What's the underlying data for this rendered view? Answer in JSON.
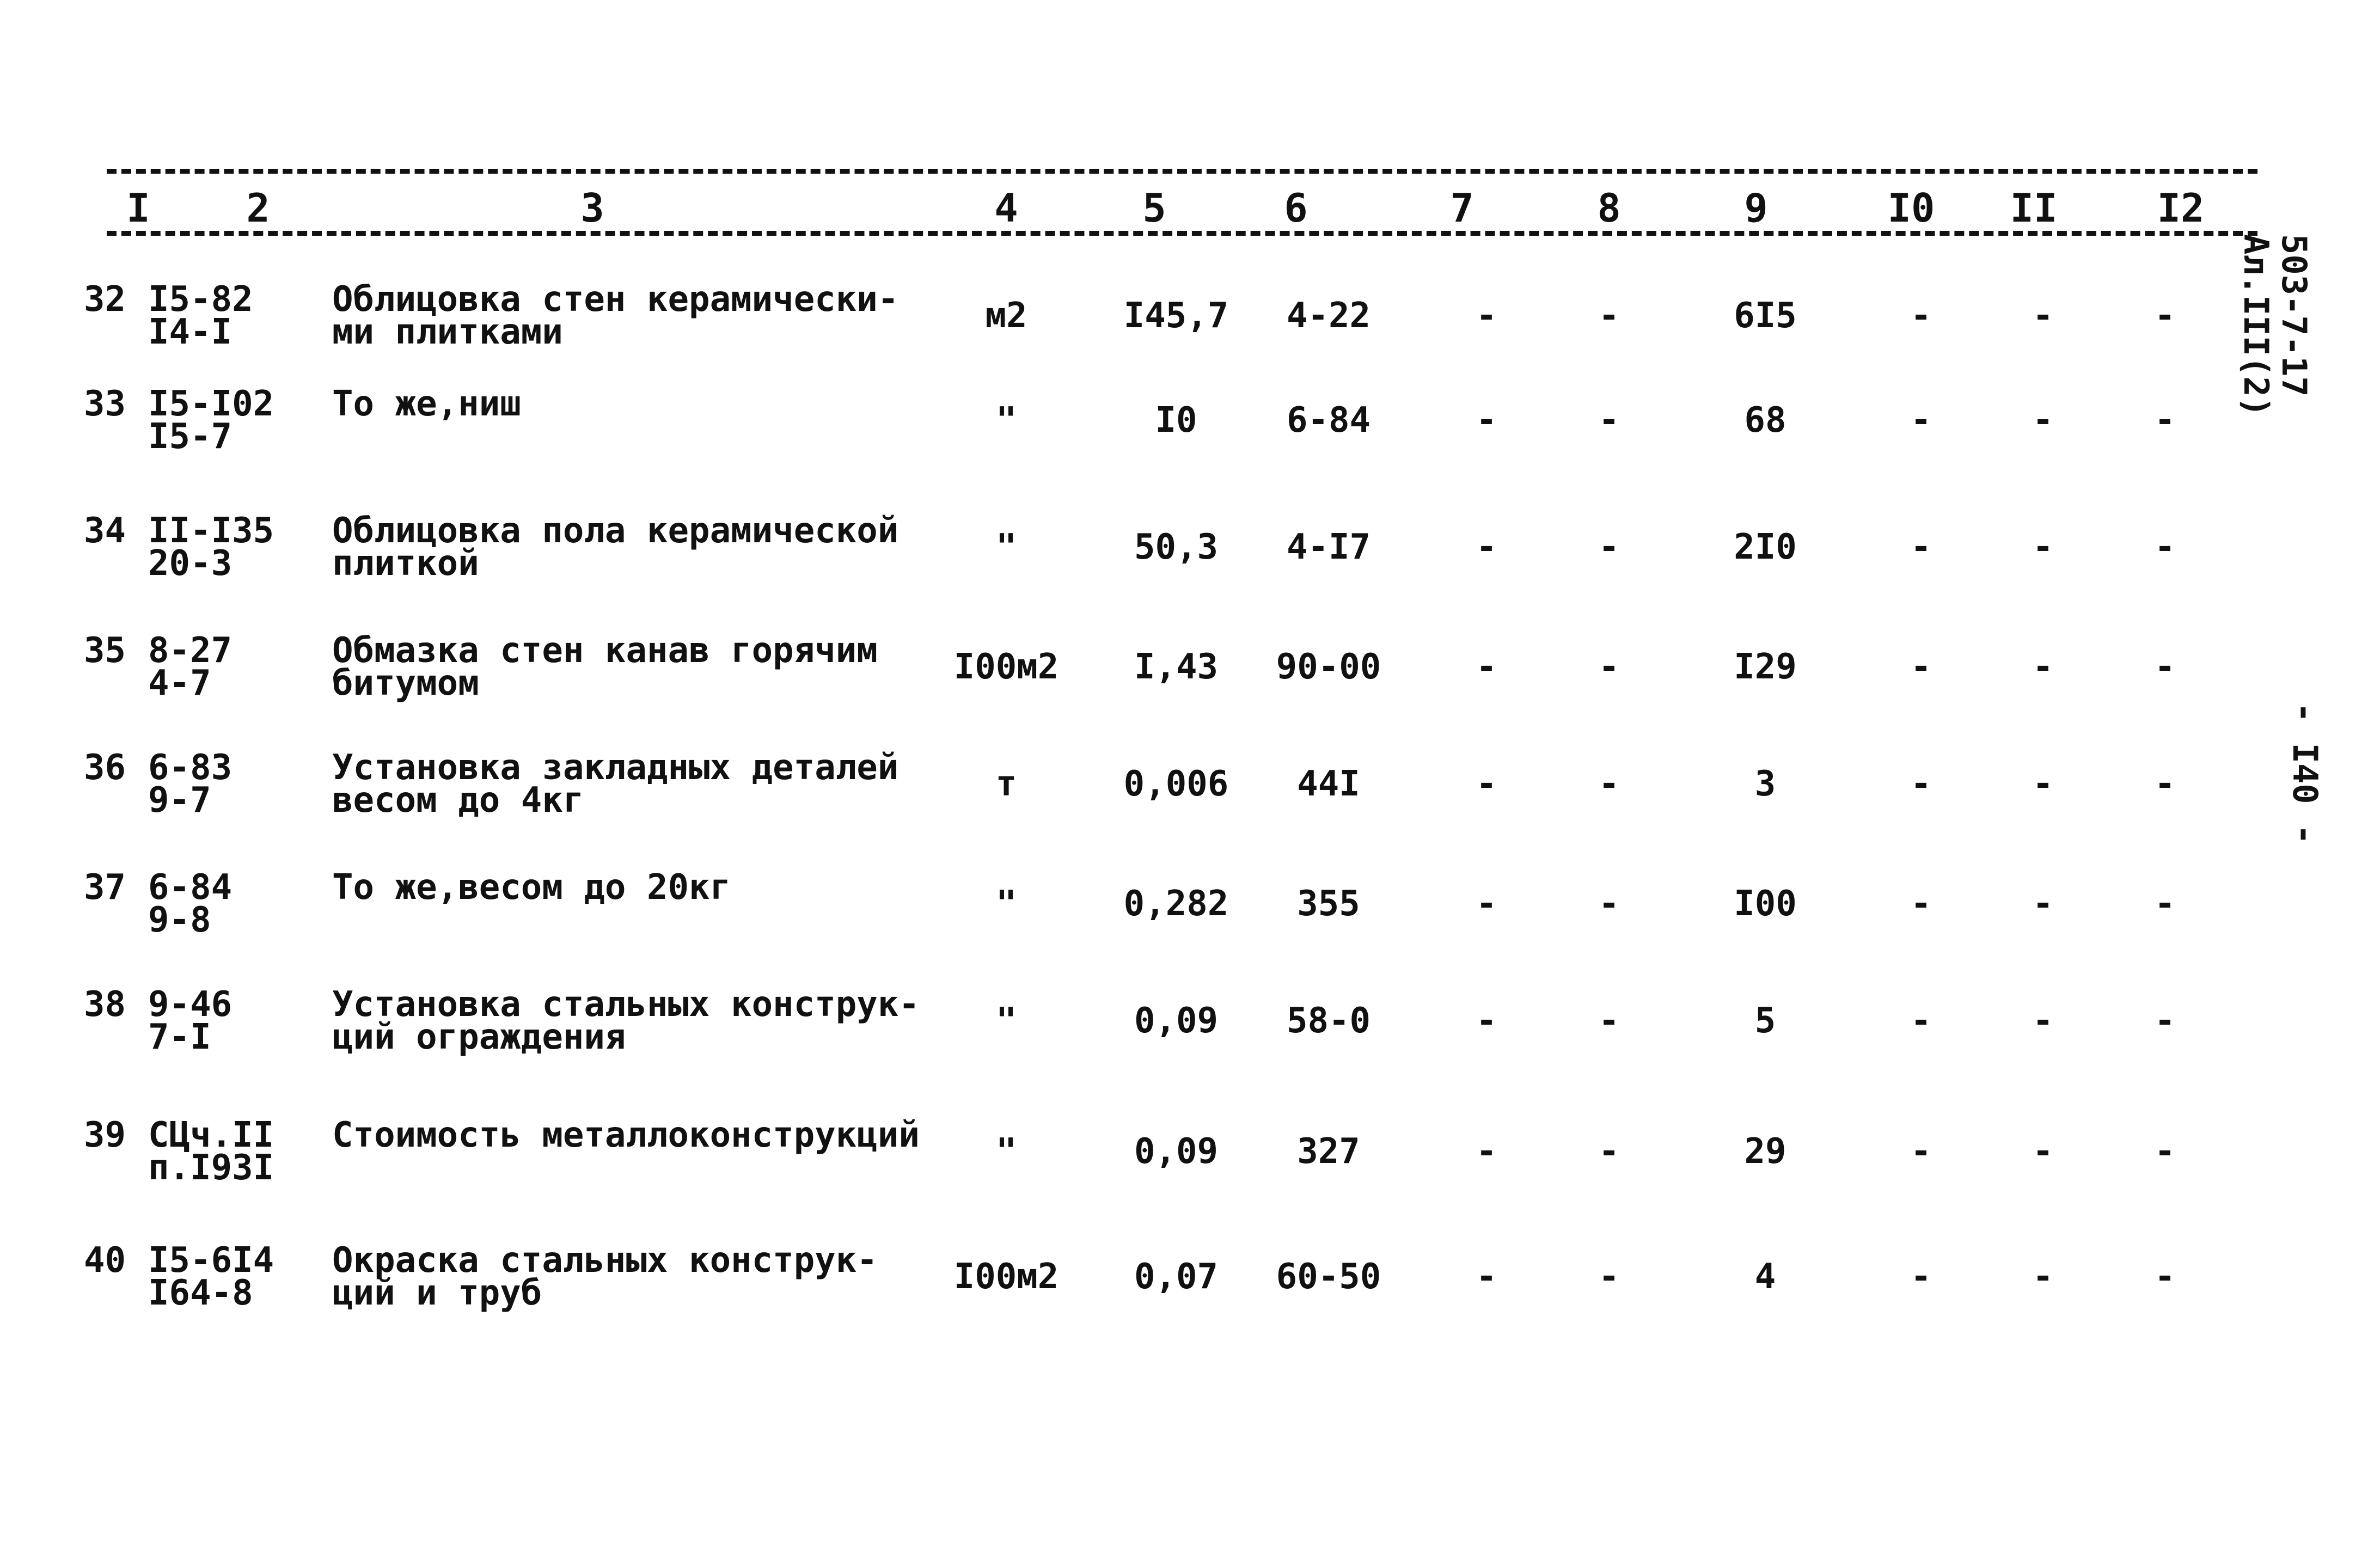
{
  "header": {
    "columns": [
      "I",
      "2",
      "3",
      "4",
      "5",
      "6",
      "7",
      "8",
      "9",
      "I0",
      "II",
      "I2"
    ]
  },
  "rows": [
    {
      "n": "32",
      "code": "I5-82\nI4-I",
      "desc": "Облицовка стен керамически-\nми плитками",
      "unit": "м2",
      "c5": "I45,7",
      "c6": "4-22",
      "c7": "-",
      "c8": "-",
      "c9": "6I5",
      "c10": "-",
      "c11": "-",
      "c12": "-"
    },
    {
      "n": "33",
      "code": "I5-I02\nI5-7",
      "desc": "То же,ниш",
      "unit": "\"",
      "c5": "I0",
      "c6": "6-84",
      "c7": "-",
      "c8": "-",
      "c9": "68",
      "c10": "-",
      "c11": "-",
      "c12": "-"
    },
    {
      "n": "34",
      "code": "II-I35\n20-3",
      "desc": "Облицовка пола керамической\nплиткой",
      "unit": "\"",
      "c5": "50,3",
      "c6": "4-I7",
      "c7": "-",
      "c8": "-",
      "c9": "2I0",
      "c10": "-",
      "c11": "-",
      "c12": "-"
    },
    {
      "n": "35",
      "code": "8-27\n4-7",
      "desc": "Обмазка стен канав горячим\nбитумом",
      "unit": "I00м2",
      "c5": "I,43",
      "c6": "90-00",
      "c7": "-",
      "c8": "-",
      "c9": "I29",
      "c10": "-",
      "c11": "-",
      "c12": "-"
    },
    {
      "n": "36",
      "code": "6-83\n9-7",
      "desc": "Установка закладных деталей\nвесом до 4кг",
      "unit": "т",
      "c5": "0,006",
      "c6": "44I",
      "c7": "-",
      "c8": "-",
      "c9": "3",
      "c10": "-",
      "c11": "-",
      "c12": "-"
    },
    {
      "n": "37",
      "code": "6-84\n9-8",
      "desc": "То же,весом до 20кг",
      "unit": "\"",
      "c5": "0,282",
      "c6": "355",
      "c7": "-",
      "c8": "-",
      "c9": "I00",
      "c10": "-",
      "c11": "-",
      "c12": "-"
    },
    {
      "n": "38",
      "code": "9-46\n7-I",
      "desc": "Установка стальных конструк-\nций ограждения",
      "unit": "\"",
      "c5": "0,09",
      "c6": "58-0",
      "c7": "-",
      "c8": "-",
      "c9": "5",
      "c10": "-",
      "c11": "-",
      "c12": "-"
    },
    {
      "n": "39",
      "code": "СЦч.II\nп.I93I",
      "desc": "Стоимость металлоконструкций",
      "unit": "\"",
      "c5": "0,09",
      "c6": "327",
      "c7": "-",
      "c8": "-",
      "c9": "29",
      "c10": "-",
      "c11": "-",
      "c12": "-"
    },
    {
      "n": "40",
      "code": "I5-6I4\nI64-8",
      "desc": "Окраска стальных конструк-\nций и труб",
      "unit": "I00м2",
      "c5": "0,07",
      "c6": "60-50",
      "c7": "-",
      "c8": "-",
      "c9": "4",
      "c10": "-",
      "c11": "-",
      "c12": "-"
    }
  ],
  "margin": {
    "doc_code": "503-7-17",
    "album": "Ал.III(2)",
    "page": "- I40 -"
  }
}
